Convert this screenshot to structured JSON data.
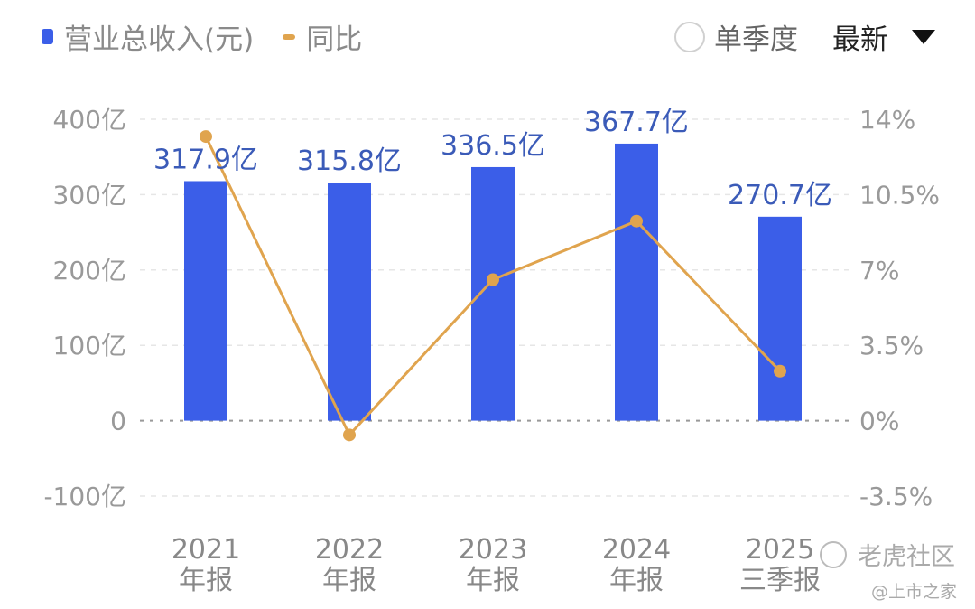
{
  "legend": {
    "bar_label": "营业总收入(元)",
    "line_label": "同比",
    "bar_color": "#3b5ee8",
    "line_color": "#e0a44e"
  },
  "controls": {
    "single_quarter_label": "单季度",
    "single_quarter_checked": false,
    "sort_label": "最新",
    "dropdown_icon": "triangle-down-icon"
  },
  "watermark": {
    "logo_text": "老虎社区",
    "account": "@上市之家"
  },
  "chart_data": {
    "type": "bar+line",
    "categories": [
      [
        "2021",
        "年报"
      ],
      [
        "2022",
        "年报"
      ],
      [
        "2023",
        "年报"
      ],
      [
        "2024",
        "年报"
      ],
      [
        "2025",
        "三季报"
      ]
    ],
    "series": [
      {
        "name": "营业总收入(元)",
        "type": "bar",
        "unit": "亿",
        "values": [
          317.9,
          315.8,
          336.5,
          367.7,
          270.7
        ],
        "labels": [
          "317.9亿",
          "315.8亿",
          "336.5亿",
          "367.7亿",
          "270.7亿"
        ]
      },
      {
        "name": "同比",
        "type": "line",
        "unit": "%",
        "values": [
          13.2,
          -0.66,
          6.55,
          9.27,
          2.3
        ]
      }
    ],
    "left_axis": {
      "range": [
        -100,
        400
      ],
      "ticks": [
        400,
        300,
        200,
        100,
        0,
        -100
      ],
      "tick_labels": [
        "400亿",
        "300亿",
        "200亿",
        "100亿",
        "0",
        "-100亿"
      ]
    },
    "right_axis": {
      "range": [
        -3.5,
        14
      ],
      "ticks": [
        14,
        10.5,
        7,
        3.5,
        0,
        -3.5
      ],
      "tick_labels": [
        "14%",
        "10.5%",
        "7%",
        "3.5%",
        "0%",
        "-3.5%"
      ]
    },
    "grid": true
  }
}
